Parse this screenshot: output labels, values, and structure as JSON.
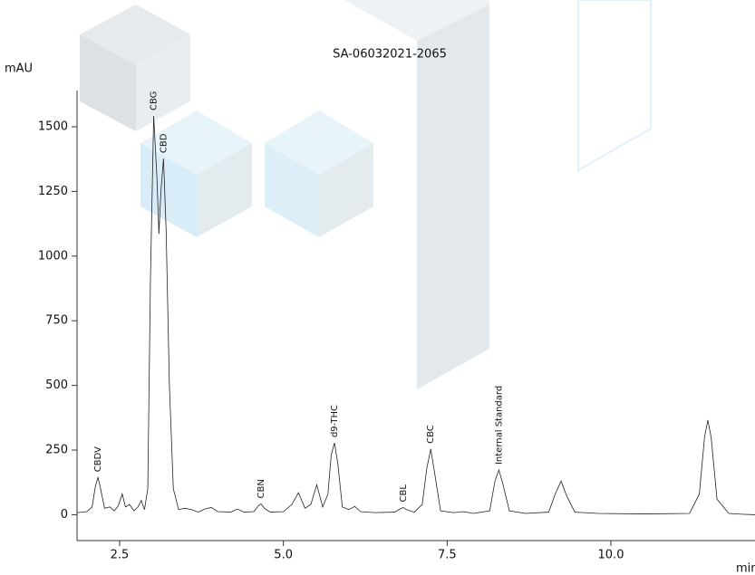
{
  "chart_data": {
    "type": "line",
    "title": "SA-06032021-2065",
    "y_label": "mAU",
    "x_label": "min",
    "color": "#222222",
    "xlim": [
      1.85,
      12.2
    ],
    "ylim": [
      -100,
      1640
    ],
    "xticks": [
      2.5,
      {
        "value": 5,
        "label": "5.0"
      },
      7.5,
      {
        "value": 10,
        "label": "10.0"
      }
    ],
    "yticks": [
      0,
      250,
      500,
      750,
      1000,
      1250,
      1500
    ],
    "x": [
      1.85,
      2.0,
      2.08,
      2.13,
      2.17,
      2.21,
      2.27,
      2.35,
      2.42,
      2.48,
      2.54,
      2.59,
      2.65,
      2.72,
      2.78,
      2.83,
      2.88,
      2.93,
      2.97,
      3.02,
      3.07,
      3.1,
      3.13,
      3.17,
      3.21,
      3.26,
      3.32,
      3.4,
      3.5,
      3.6,
      3.7,
      3.8,
      3.9,
      4.0,
      4.2,
      4.3,
      4.4,
      4.55,
      4.62,
      4.66,
      4.71,
      4.8,
      5.0,
      5.13,
      5.23,
      5.33,
      5.42,
      5.51,
      5.6,
      5.68,
      5.73,
      5.78,
      5.83,
      5.9,
      6.0,
      6.09,
      6.18,
      6.4,
      6.7,
      6.78,
      6.83,
      6.88,
      7.0,
      7.12,
      7.19,
      7.25,
      7.31,
      7.4,
      7.6,
      7.75,
      7.9,
      8.15,
      8.23,
      8.29,
      8.35,
      8.45,
      8.7,
      9.05,
      9.15,
      9.24,
      9.33,
      9.45,
      9.8,
      10.5,
      11.2,
      11.35,
      11.43,
      11.48,
      11.53,
      11.62,
      11.8,
      12.0,
      12.2
    ],
    "values": [
      8,
      12,
      30,
      110,
      144,
      100,
      25,
      30,
      15,
      35,
      80,
      30,
      40,
      15,
      30,
      55,
      20,
      100,
      900,
      1542,
      1300,
      1085,
      1250,
      1377,
      1100,
      500,
      100,
      20,
      25,
      20,
      10,
      22,
      28,
      12,
      10,
      22,
      10,
      12,
      35,
      42,
      25,
      10,
      12,
      40,
      85,
      25,
      40,
      116,
      30,
      80,
      230,
      278,
      200,
      30,
      20,
      32,
      12,
      8,
      10,
      22,
      28,
      20,
      10,
      40,
      180,
      254,
      160,
      15,
      8,
      12,
      5,
      15,
      130,
      173,
      120,
      15,
      5,
      10,
      80,
      130,
      70,
      10,
      5,
      3,
      5,
      80,
      300,
      366,
      300,
      60,
      5,
      2,
      0
    ],
    "peak_labels": [
      {
        "text": "CBDV",
        "x": 2.17,
        "y": 144
      },
      {
        "text": "CBG",
        "x": 3.02,
        "y": 1542
      },
      {
        "text": "CBD",
        "x": 3.17,
        "y": 1377
      },
      {
        "text": "CBN",
        "x": 4.66,
        "y": 42
      },
      {
        "text": "d9-THC",
        "x": 5.78,
        "y": 278
      },
      {
        "text": "CBL",
        "x": 6.83,
        "y": 28
      },
      {
        "text": "CBC",
        "x": 7.25,
        "y": 254
      },
      {
        "text": "Internal Standard",
        "x": 8.29,
        "y": 173
      }
    ]
  }
}
